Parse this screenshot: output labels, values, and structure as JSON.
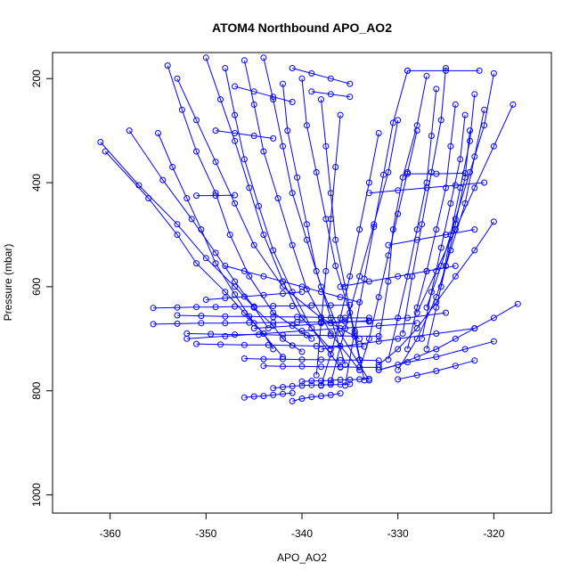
{
  "chart_data": {
    "type": "scatter",
    "title": "ATOM4 Northbound APO_AO2",
    "xlabel": "APO_AO2",
    "ylabel": "Pressure (mbar)",
    "xlim": [
      -366,
      -314
    ],
    "ylim": [
      1035,
      150
    ],
    "y_reversed": true,
    "x_ticks": [
      -360,
      -350,
      -340,
      -330,
      -320
    ],
    "y_ticks": [
      200,
      400,
      600,
      800,
      1000
    ],
    "grid": false,
    "legend": "none",
    "series_color": "#0000ff",
    "marker": "open-circle",
    "connect_points": true,
    "profiles": [
      {
        "x": [
          -361,
          -357,
          -353,
          -350,
          -347,
          -345,
          -343,
          -342,
          -340
        ],
        "y": [
          322,
          405,
          480,
          545,
          600,
          640,
          675,
          700,
          725
        ]
      },
      {
        "x": [
          -360.5,
          -356,
          -353,
          -351,
          -348,
          -346,
          -344,
          -343
        ],
        "y": [
          340,
          430,
          500,
          555,
          610,
          650,
          690,
          720
        ]
      },
      {
        "x": [
          -358,
          -354.5,
          -351.5,
          -349,
          -347,
          -345,
          -343.5
        ],
        "y": [
          300,
          395,
          470,
          535,
          590,
          640,
          680
        ]
      },
      {
        "x": [
          -355,
          -353.5,
          -352,
          -350.5,
          -349,
          -347,
          -345,
          -342
        ],
        "y": [
          305,
          370,
          430,
          490,
          555,
          615,
          670,
          735
        ]
      },
      {
        "x": [
          -354,
          -352.5,
          -351,
          -349,
          -347.5,
          -345.5,
          -343,
          -339
        ],
        "y": [
          175,
          260,
          340,
          420,
          500,
          580,
          650,
          700
        ]
      },
      {
        "x": [
          -353,
          -351,
          -349,
          -347,
          -345,
          -342,
          -338,
          -334
        ],
        "y": [
          200,
          280,
          360,
          440,
          520,
          600,
          660,
          700
        ]
      },
      {
        "x": [
          -350,
          -348.5,
          -347,
          -345.5,
          -344,
          -342,
          -340,
          -337
        ],
        "y": [
          160,
          240,
          320,
          410,
          500,
          590,
          660,
          720
        ]
      },
      {
        "x": [
          -348,
          -347,
          -346,
          -344.5,
          -343,
          -341,
          -339,
          -336
        ],
        "y": [
          180,
          270,
          355,
          445,
          530,
          610,
          680,
          755
        ]
      },
      {
        "x": [
          -346,
          -345,
          -344,
          -342.5,
          -341,
          -339.5,
          -337,
          -334
        ],
        "y": [
          165,
          250,
          340,
          430,
          520,
          605,
          690,
          760
        ]
      },
      {
        "x": [
          -344,
          -343,
          -342,
          -341,
          -339.5,
          -338,
          -336,
          -333
        ],
        "y": [
          160,
          240,
          330,
          420,
          510,
          600,
          690,
          780
        ]
      },
      {
        "x": [
          -342,
          -341.5,
          -340.5,
          -339.5,
          -338.5,
          -337,
          -335.5
        ],
        "y": [
          210,
          300,
          390,
          480,
          570,
          660,
          750
        ]
      },
      {
        "x": [
          -340,
          -339.5,
          -338.5,
          -337.5,
          -336.5,
          -335,
          -334
        ],
        "y": [
          200,
          290,
          380,
          470,
          560,
          650,
          740
        ]
      },
      {
        "x": [
          -338,
          -337.5,
          -337,
          -336.5,
          -335.5,
          -334.5,
          -333.5
        ],
        "y": [
          240,
          330,
          420,
          510,
          600,
          690,
          780
        ]
      },
      {
        "x": [
          -336,
          -336.5,
          -337,
          -337.5,
          -338,
          -338.5
        ],
        "y": [
          270,
          370,
          470,
          570,
          670,
          770
        ]
      },
      {
        "x": [
          -332,
          -333,
          -334,
          -335,
          -336,
          -337,
          -338
        ],
        "y": [
          305,
          400,
          490,
          580,
          660,
          730,
          790
        ]
      },
      {
        "x": [
          -330,
          -331,
          -332.5,
          -334,
          -335.5,
          -337
        ],
        "y": [
          280,
          380,
          480,
          580,
          680,
          785
        ]
      },
      {
        "x": [
          -329,
          -330.5,
          -331.5,
          -332.5,
          -333.5,
          -334.5,
          -335.5
        ],
        "y": [
          185,
          285,
          385,
          485,
          585,
          685,
          790
        ]
      },
      {
        "x": [
          -328,
          -329,
          -330,
          -331,
          -332,
          -333,
          -334
        ],
        "y": [
          300,
          380,
          460,
          540,
          620,
          700,
          760
        ]
      },
      {
        "x": [
          -327,
          -328,
          -329.5,
          -330.5,
          -331,
          -332
        ],
        "y": [
          195,
          290,
          390,
          490,
          590,
          705
        ]
      },
      {
        "x": [
          -326,
          -326.5,
          -327,
          -328,
          -329,
          -330,
          -331
        ],
        "y": [
          220,
          310,
          400,
          490,
          580,
          660,
          740
        ]
      },
      {
        "x": [
          -325,
          -325.5,
          -326.5,
          -327.5,
          -328.5,
          -329.5
        ],
        "y": [
          180,
          280,
          380,
          480,
          580,
          690
        ]
      },
      {
        "x": [
          -324,
          -324.5,
          -325,
          -326,
          -327,
          -328,
          -329
        ],
        "y": [
          250,
          330,
          410,
          490,
          570,
          640,
          720
        ]
      },
      {
        "x": [
          -323,
          -323.5,
          -324.5,
          -325.5,
          -326.5,
          -327.5
        ],
        "y": [
          270,
          355,
          440,
          525,
          610,
          700
        ]
      },
      {
        "x": [
          -322.5,
          -323,
          -324,
          -325,
          -326,
          -327
        ],
        "y": [
          300,
          390,
          480,
          560,
          640,
          720
        ]
      },
      {
        "x": [
          -322,
          -322.5,
          -323.5,
          -324.5,
          -325.5
        ],
        "y": [
          230,
          320,
          410,
          500,
          600
        ]
      },
      {
        "x": [
          -321,
          -322,
          -323,
          -324.5,
          -326,
          -328,
          -330
        ],
        "y": [
          260,
          350,
          440,
          530,
          620,
          700,
          760
        ]
      },
      {
        "x": [
          -320,
          -321,
          -322.5,
          -324,
          -325.5,
          -327
        ],
        "y": [
          190,
          290,
          380,
          470,
          560,
          640
        ]
      },
      {
        "x": [
          -318,
          -320,
          -322,
          -324,
          -326,
          -328
        ],
        "y": [
          250,
          330,
          410,
          490,
          570,
          650
        ]
      },
      {
        "x": [
          -320,
          -322,
          -324,
          -326,
          -328,
          -330,
          -332
        ],
        "y": [
          475,
          530,
          580,
          630,
          680,
          720,
          750
        ]
      },
      {
        "x": [
          -317.5,
          -320,
          -322,
          -324,
          -326,
          -328,
          -330,
          -332
        ],
        "y": [
          633,
          660,
          680,
          700,
          720,
          735,
          750,
          760
        ]
      },
      {
        "x": [
          -320,
          -323,
          -326,
          -329,
          -332
        ],
        "y": [
          705,
          720,
          735,
          745,
          760
        ]
      },
      {
        "x": [
          -322,
          -324,
          -326,
          -328,
          -330
        ],
        "y": [
          742,
          752,
          762,
          770,
          778
        ]
      },
      {
        "x": [
          -346,
          -345,
          -344,
          -343,
          -342,
          -341
        ],
        "y": [
          813,
          811,
          810,
          808,
          806,
          804
        ]
      },
      {
        "x": [
          -343,
          -342,
          -341,
          -340,
          -339,
          -338,
          -337,
          -336,
          -335
        ],
        "y": [
          795,
          793,
          791,
          790,
          789,
          789,
          788,
          788,
          787
        ]
      },
      {
        "x": [
          -340,
          -339,
          -338,
          -337,
          -336,
          -335,
          -334,
          -333
        ],
        "y": [
          782,
          781,
          781,
          780,
          779,
          779,
          778,
          777
        ]
      },
      {
        "x": [
          -341,
          -340,
          -339,
          -338,
          -337,
          -336
        ],
        "y": [
          820,
          815,
          812,
          810,
          808,
          805
        ]
      },
      {
        "x": [
          -355.5,
          -353,
          -351,
          -349,
          -347,
          -345,
          -343,
          -341,
          -339,
          -337,
          -335
        ],
        "y": [
          641,
          640,
          639,
          639,
          638,
          638,
          637,
          637,
          636,
          636,
          635
        ]
      },
      {
        "x": [
          -355.5,
          -353,
          -350.5,
          -348,
          -345.5,
          -343,
          -340.5,
          -338,
          -335.5,
          -333
        ],
        "y": [
          672,
          671,
          670,
          670,
          669,
          669,
          668,
          668,
          667,
          667
        ]
      },
      {
        "x": [
          -353,
          -350.5,
          -348,
          -345.5,
          -343,
          -340.5,
          -338,
          -335.5,
          -333
        ],
        "y": [
          655,
          656,
          657,
          657,
          658,
          658,
          659,
          660,
          660
        ]
      },
      {
        "x": [
          -352,
          -349.5,
          -347,
          -344.5,
          -342,
          -339.5,
          -337,
          -334.5,
          -332
        ],
        "y": [
          690,
          691,
          692,
          692,
          693,
          693,
          694,
          695,
          695
        ]
      },
      {
        "x": [
          -351,
          -348.5,
          -346,
          -343.5,
          -341,
          -338.5,
          -336,
          -333.5
        ],
        "y": [
          710,
          711,
          712,
          712,
          713,
          714,
          714,
          715
        ]
      },
      {
        "x": [
          -346,
          -344,
          -342,
          -340,
          -338,
          -336,
          -334,
          -332
        ],
        "y": [
          738,
          739,
          739,
          740,
          740,
          741,
          741,
          742
        ]
      },
      {
        "x": [
          -344,
          -342,
          -340,
          -338,
          -336,
          -334,
          -332
        ],
        "y": [
          752,
          753,
          753,
          754,
          754,
          755,
          755
        ]
      },
      {
        "x": [
          -350,
          -348,
          -346,
          -344,
          -342,
          -340
        ],
        "y": [
          625,
          622,
          619,
          616,
          613,
          610
        ]
      },
      {
        "x": [
          -348,
          -346,
          -344,
          -342,
          -340,
          -338,
          -336,
          -334
        ],
        "y": [
          560,
          570,
          580,
          590,
          600,
          610,
          620,
          630
        ]
      },
      {
        "x": [
          -352,
          -348,
          -344,
          -340,
          -336,
          -332,
          -328
        ],
        "y": [
          700,
          695,
          690,
          685,
          680,
          675,
          670
        ]
      },
      {
        "x": [
          -345,
          -341,
          -337,
          -333,
          -329,
          -325
        ],
        "y": [
          680,
          675,
          670,
          665,
          660,
          650
        ]
      },
      {
        "x": [
          -338,
          -334,
          -330,
          -326,
          -322
        ],
        "y": [
          720,
          710,
          700,
          690,
          680
        ]
      },
      {
        "x": [
          -329,
          -326,
          -323
        ],
        "y": [
          383,
          383,
          382
        ]
      },
      {
        "x": [
          -329,
          -325,
          -321.5
        ],
        "y": [
          185,
          185,
          185
        ]
      },
      {
        "x": [
          -333,
          -330,
          -327,
          -324,
          -321
        ],
        "y": [
          420,
          415,
          410,
          405,
          400
        ]
      },
      {
        "x": [
          -331,
          -328,
          -325,
          -322
        ],
        "y": [
          520,
          510,
          500,
          490
        ]
      },
      {
        "x": [
          -336,
          -333,
          -330,
          -327,
          -324
        ],
        "y": [
          600,
          590,
          580,
          570,
          560
        ]
      },
      {
        "x": [
          -349,
          -347,
          -345,
          -343
        ],
        "y": [
          300,
          305,
          310,
          315
        ]
      },
      {
        "x": [
          -351,
          -349,
          -347
        ],
        "y": [
          425,
          425,
          424
        ]
      },
      {
        "x": [
          -347,
          -345,
          -343,
          -341
        ],
        "y": [
          215,
          225,
          235,
          245
        ]
      },
      {
        "x": [
          -339,
          -337,
          -335
        ],
        "y": [
          225,
          230,
          235
        ]
      },
      {
        "x": [
          -341,
          -339,
          -337,
          -335
        ],
        "y": [
          180,
          190,
          200,
          210
        ]
      }
    ]
  }
}
